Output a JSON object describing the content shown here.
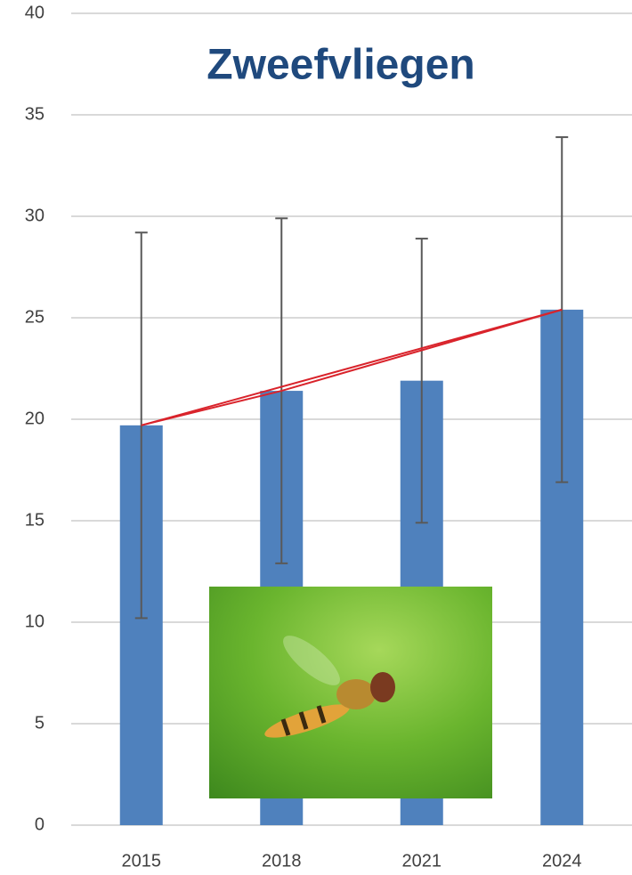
{
  "chart_data": {
    "type": "bar",
    "title": "Zweefvliegen",
    "categories": [
      "2015",
      "2018",
      "2021",
      "2024"
    ],
    "values": [
      19.7,
      21.4,
      21.9,
      25.4
    ],
    "errors": [
      9.5,
      8.5,
      7.0,
      8.5
    ],
    "color": "#4f81bd",
    "error_color": "#595959",
    "trend_color": "#d9232b",
    "ylim": [
      0,
      40
    ],
    "yticks": [
      0,
      5,
      10,
      15,
      20,
      25,
      30,
      35,
      40
    ],
    "grid": true
  }
}
